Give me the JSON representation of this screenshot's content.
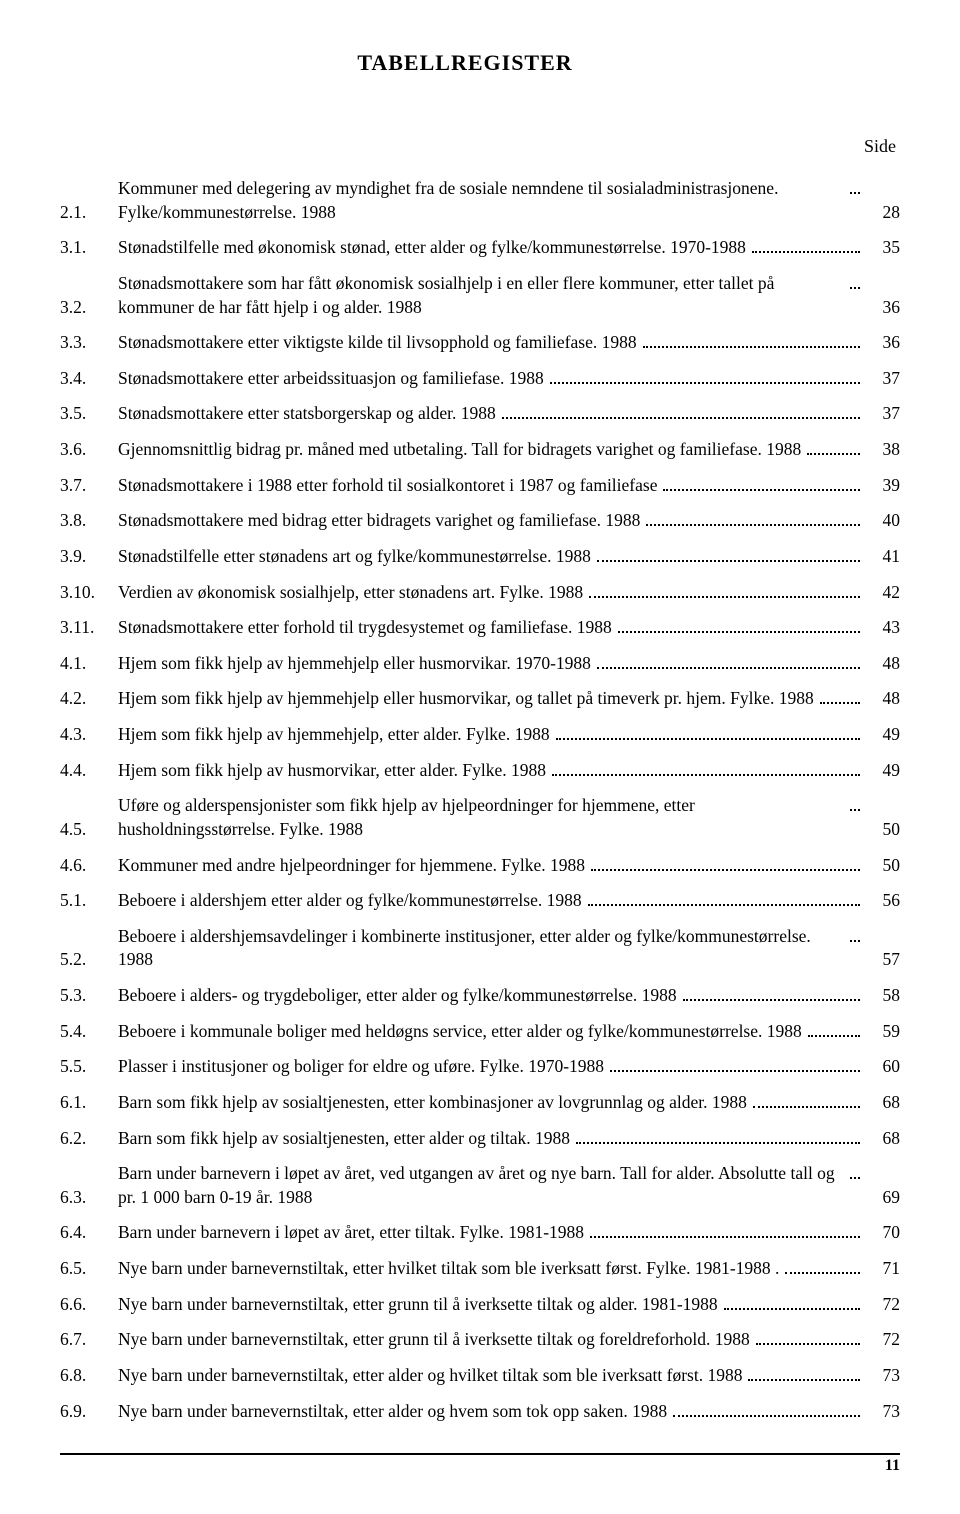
{
  "title": "TABELLREGISTER",
  "side_label": "Side",
  "page_number": "11",
  "entries": [
    {
      "num": "2.1.",
      "text": "Kommuner med delegering av myndighet fra de sosiale nemndene til sosialadministrasjonene. Fylke/kommunestørrelse. 1988",
      "page": "28"
    },
    {
      "num": "3.1.",
      "text": "Stønadstilfelle med økonomisk stønad, etter alder og fylke/kommunestørrelse. 1970-1988",
      "page": "35"
    },
    {
      "num": "3.2.",
      "text": "Stønadsmottakere som har fått økonomisk sosialhjelp i en eller flere kommuner, etter tallet på kommuner de har fått hjelp i og alder. 1988",
      "page": "36"
    },
    {
      "num": "3.3.",
      "text": "Stønadsmottakere etter viktigste kilde til livsopphold og familiefase. 1988",
      "page": "36"
    },
    {
      "num": "3.4.",
      "text": "Stønadsmottakere etter arbeidssituasjon og familiefase. 1988",
      "page": "37"
    },
    {
      "num": "3.5.",
      "text": "Stønadsmottakere etter statsborgerskap og alder. 1988",
      "page": "37"
    },
    {
      "num": "3.6.",
      "text": "Gjennomsnittlig bidrag pr. måned med utbetaling. Tall for bidragets varighet og familiefase. 1988",
      "page": "38"
    },
    {
      "num": "3.7.",
      "text": "Stønadsmottakere i 1988 etter forhold til sosialkontoret i 1987 og familiefase",
      "page": "39"
    },
    {
      "num": "3.8.",
      "text": "Stønadsmottakere med bidrag etter bidragets varighet og familiefase. 1988",
      "page": "40"
    },
    {
      "num": "3.9.",
      "text": "Stønadstilfelle etter stønadens art og fylke/kommunestørrelse. 1988",
      "page": "41"
    },
    {
      "num": "3.10.",
      "text": "Verdien av økonomisk sosialhjelp, etter stønadens art. Fylke. 1988",
      "page": "42"
    },
    {
      "num": "3.11.",
      "text": "Stønadsmottakere etter forhold til trygdesystemet og familiefase. 1988",
      "page": "43"
    },
    {
      "num": "4.1.",
      "text": "Hjem som fikk hjelp av hjemmehjelp eller husmorvikar. 1970-1988",
      "page": "48"
    },
    {
      "num": "4.2.",
      "text": "Hjem som fikk hjelp av hjemmehjelp eller husmorvikar, og tallet på timeverk pr. hjem. Fylke. 1988",
      "page": "48"
    },
    {
      "num": "4.3.",
      "text": "Hjem som fikk hjelp av hjemmehjelp, etter alder. Fylke. 1988",
      "page": "49"
    },
    {
      "num": "4.4.",
      "text": "Hjem som fikk hjelp av husmorvikar, etter alder. Fylke. 1988",
      "page": "49"
    },
    {
      "num": "4.5.",
      "text": "Uføre og alderspensjonister som fikk hjelp av hjelpeordninger for hjemmene, etter husholdningsstørrelse. Fylke. 1988",
      "page": "50"
    },
    {
      "num": "4.6.",
      "text": "Kommuner med andre hjelpeordninger for hjemmene. Fylke. 1988",
      "page": "50"
    },
    {
      "num": "5.1.",
      "text": "Beboere i aldershjem etter alder og fylke/kommunestørrelse. 1988",
      "page": "56"
    },
    {
      "num": "5.2.",
      "text": "Beboere i aldershjemsavdelinger i kombinerte institusjoner, etter alder og fylke/kommune­størrelse. 1988",
      "page": "57"
    },
    {
      "num": "5.3.",
      "text": "Beboere i alders- og trygdeboliger, etter alder og fylke/kommunestørrelse. 1988",
      "page": "58"
    },
    {
      "num": "5.4.",
      "text": "Beboere i kommunale boliger med heldøgns service, etter alder og fylke/kommunestørrelse. 1988",
      "page": "59"
    },
    {
      "num": "5.5.",
      "text": "Plasser i institusjoner og boliger for eldre og uføre. Fylke. 1970-1988",
      "page": "60"
    },
    {
      "num": "6.1.",
      "text": "Barn som fikk hjelp av sosialtjenesten, etter kombinasjoner av lovgrunnlag og alder. 1988",
      "page": "68"
    },
    {
      "num": "6.2.",
      "text": "Barn som fikk hjelp av sosialtjenesten, etter alder og tiltak. 1988",
      "page": "68"
    },
    {
      "num": "6.3.",
      "text": "Barn under barnevern i løpet av året, ved utgangen av året og nye barn. Tall for alder. Absolutte tall og pr. 1 000 barn 0-19 år. 1988",
      "page": "69"
    },
    {
      "num": "6.4.",
      "text": "Barn under barnevern i løpet av året, etter tiltak. Fylke. 1981-1988",
      "page": "70"
    },
    {
      "num": "6.5.",
      "text": "Nye barn under barnevernstiltak, etter hvilket tiltak som ble iverksatt først. Fylke. 1981-1988 .",
      "page": "71"
    },
    {
      "num": "6.6.",
      "text": "Nye barn under barnevernstiltak, etter grunn til å iverksette tiltak og alder. 1981-1988",
      "page": "72"
    },
    {
      "num": "6.7.",
      "text": "Nye barn under barnevernstiltak, etter grunn til å iverksette tiltak og foreldreforhold. 1988",
      "page": "72"
    },
    {
      "num": "6.8.",
      "text": "Nye barn under barnevernstiltak, etter alder og hvilket tiltak som ble iverksatt først. 1988",
      "page": "73"
    },
    {
      "num": "6.9.",
      "text": "Nye barn under barnevernstiltak, etter alder og hvem som tok opp saken. 1988",
      "page": "73"
    }
  ]
}
